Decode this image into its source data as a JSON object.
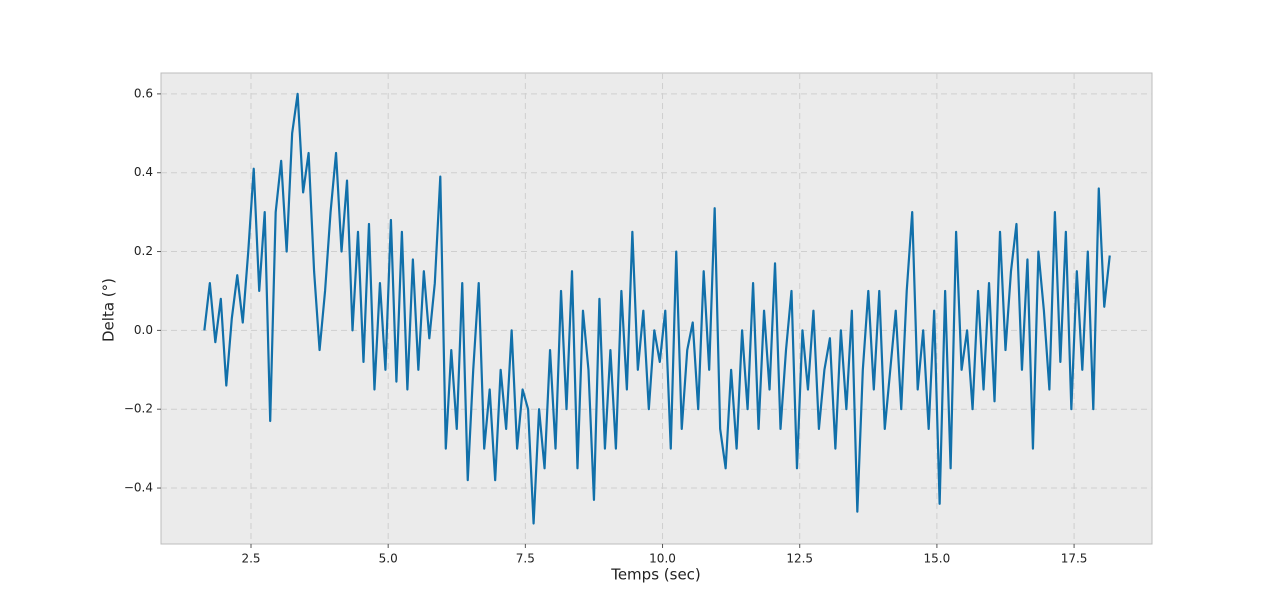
{
  "chart_data": {
    "type": "line",
    "xlabel": "Temps (sec)",
    "ylabel": "Delta (°)",
    "color": "#1170aa",
    "grid": true,
    "xlim": [
      0.86,
      18.92
    ],
    "ylim": [
      -0.542,
      0.653
    ],
    "xticks": [
      2.5,
      {
        "value": 5,
        "label": "5.0"
      },
      7.5,
      {
        "value": 10,
        "label": "10.0"
      },
      12.5,
      {
        "value": 15,
        "label": "15.0"
      },
      17.5
    ],
    "yticks": [
      {
        "value": -0.4,
        "label": "−0.4"
      },
      {
        "value": -0.2,
        "label": "−0.2"
      },
      {
        "value": 0,
        "label": "0.0"
      },
      0.2,
      0.4,
      0.6
    ],
    "x": [
      1.65,
      1.75,
      1.85,
      1.95,
      2.05,
      2.15,
      2.25,
      2.35,
      2.45,
      2.55,
      2.65,
      2.75,
      2.85,
      2.95,
      3.05,
      3.15,
      3.25,
      3.35,
      3.45,
      3.55,
      3.65,
      3.75,
      3.85,
      3.95,
      4.05,
      4.15,
      4.25,
      4.35,
      4.45,
      4.55,
      4.65,
      4.75,
      4.85,
      4.95,
      5.05,
      5.15,
      5.25,
      5.35,
      5.45,
      5.55,
      5.65,
      5.75,
      5.85,
      5.95,
      6.05,
      6.15,
      6.25,
      6.35,
      6.45,
      6.55,
      6.65,
      6.75,
      6.85,
      6.95,
      7.05,
      7.15,
      7.25,
      7.35,
      7.45,
      7.55,
      7.65,
      7.75,
      7.85,
      7.95,
      8.05,
      8.15,
      8.25,
      8.35,
      8.45,
      8.55,
      8.65,
      8.75,
      8.85,
      8.95,
      9.05,
      9.15,
      9.25,
      9.35,
      9.45,
      9.55,
      9.65,
      9.75,
      9.85,
      9.95,
      10.05,
      10.15,
      10.25,
      10.35,
      10.45,
      10.55,
      10.65,
      10.75,
      10.85,
      10.95,
      11.05,
      11.15,
      11.25,
      11.35,
      11.45,
      11.55,
      11.65,
      11.75,
      11.85,
      11.95,
      12.05,
      12.15,
      12.25,
      12.35,
      12.45,
      12.55,
      12.65,
      12.75,
      12.85,
      12.95,
      13.05,
      13.15,
      13.25,
      13.35,
      13.45,
      13.55,
      13.65,
      13.75,
      13.85,
      13.95,
      14.05,
      14.15,
      14.25,
      14.35,
      14.45,
      14.55,
      14.65,
      14.75,
      14.85,
      14.95,
      15.05,
      15.15,
      15.25,
      15.35,
      15.45,
      15.55,
      15.65,
      15.75,
      15.85,
      15.95,
      16.05,
      16.15,
      16.25,
      16.35,
      16.45,
      16.55,
      16.65,
      16.75,
      16.85,
      16.95,
      17.05,
      17.15,
      17.25,
      17.35,
      17.45,
      17.55,
      17.65,
      17.75,
      17.85,
      17.95,
      18.05,
      18.15
    ],
    "values": [
      0.0,
      0.12,
      -0.03,
      0.08,
      -0.14,
      0.03,
      0.14,
      0.02,
      0.2,
      0.41,
      0.1,
      0.3,
      -0.23,
      0.3,
      0.43,
      0.2,
      0.5,
      0.6,
      0.35,
      0.45,
      0.15,
      -0.05,
      0.1,
      0.3,
      0.45,
      0.2,
      0.38,
      0.0,
      0.25,
      -0.08,
      0.27,
      -0.15,
      0.12,
      -0.1,
      0.28,
      -0.13,
      0.25,
      -0.15,
      0.18,
      -0.1,
      0.15,
      -0.02,
      0.12,
      0.39,
      -0.3,
      -0.05,
      -0.25,
      0.12,
      -0.38,
      -0.1,
      0.12,
      -0.3,
      -0.15,
      -0.38,
      -0.1,
      -0.25,
      0.0,
      -0.3,
      -0.15,
      -0.2,
      -0.49,
      -0.2,
      -0.35,
      -0.05,
      -0.3,
      0.1,
      -0.2,
      0.15,
      -0.35,
      0.05,
      -0.1,
      -0.43,
      0.08,
      -0.3,
      -0.05,
      -0.3,
      0.1,
      -0.15,
      0.25,
      -0.1,
      0.05,
      -0.2,
      0.0,
      -0.08,
      0.05,
      -0.3,
      0.2,
      -0.25,
      -0.05,
      0.02,
      -0.2,
      0.15,
      -0.1,
      0.31,
      -0.25,
      -0.35,
      -0.1,
      -0.3,
      0.0,
      -0.2,
      0.12,
      -0.25,
      0.05,
      -0.15,
      0.17,
      -0.25,
      -0.05,
      0.1,
      -0.35,
      0.0,
      -0.15,
      0.05,
      -0.25,
      -0.1,
      -0.02,
      -0.3,
      0.0,
      -0.2,
      0.05,
      -0.46,
      -0.1,
      0.1,
      -0.15,
      0.1,
      -0.25,
      -0.1,
      0.05,
      -0.2,
      0.1,
      0.3,
      -0.15,
      0.0,
      -0.25,
      0.05,
      -0.44,
      0.1,
      -0.35,
      0.25,
      -0.1,
      0.0,
      -0.2,
      0.1,
      -0.15,
      0.12,
      -0.18,
      0.25,
      -0.05,
      0.15,
      0.27,
      -0.1,
      0.18,
      -0.3,
      0.2,
      0.05,
      -0.15,
      0.3,
      -0.08,
      0.25,
      -0.2,
      0.15,
      -0.1,
      0.2,
      -0.2,
      0.36,
      0.06,
      0.19
    ]
  }
}
